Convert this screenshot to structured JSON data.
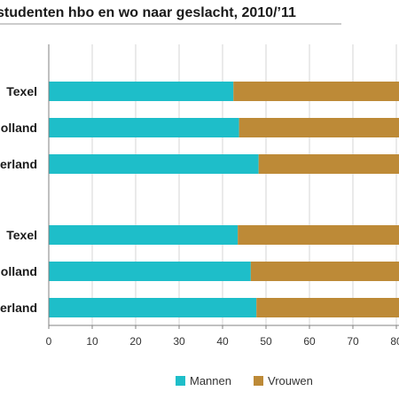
{
  "chart_data": {
    "type": "bar",
    "orientation": "horizontal",
    "stacked": true,
    "title": "studenten hbo en wo naar geslacht, 2010/’11",
    "categories": [
      "Texel",
      "olland",
      "erland",
      "Texel",
      "olland",
      "erland"
    ],
    "series": [
      {
        "name": "Mannen",
        "color": "#1ebec9",
        "values": [
          42.5,
          43.8,
          48.3,
          43.5,
          46.5,
          47.8
        ]
      },
      {
        "name": "Vrouwen",
        "color": "#bd8a37",
        "values": [
          57.5,
          56.2,
          51.7,
          56.5,
          53.5,
          52.2
        ]
      }
    ],
    "xlim": [
      0,
      100
    ],
    "xticks": [
      "0",
      "10",
      "20",
      "30",
      "40",
      "50",
      "60",
      "70",
      "80"
    ],
    "grid": true,
    "legend_position": "bottom"
  }
}
